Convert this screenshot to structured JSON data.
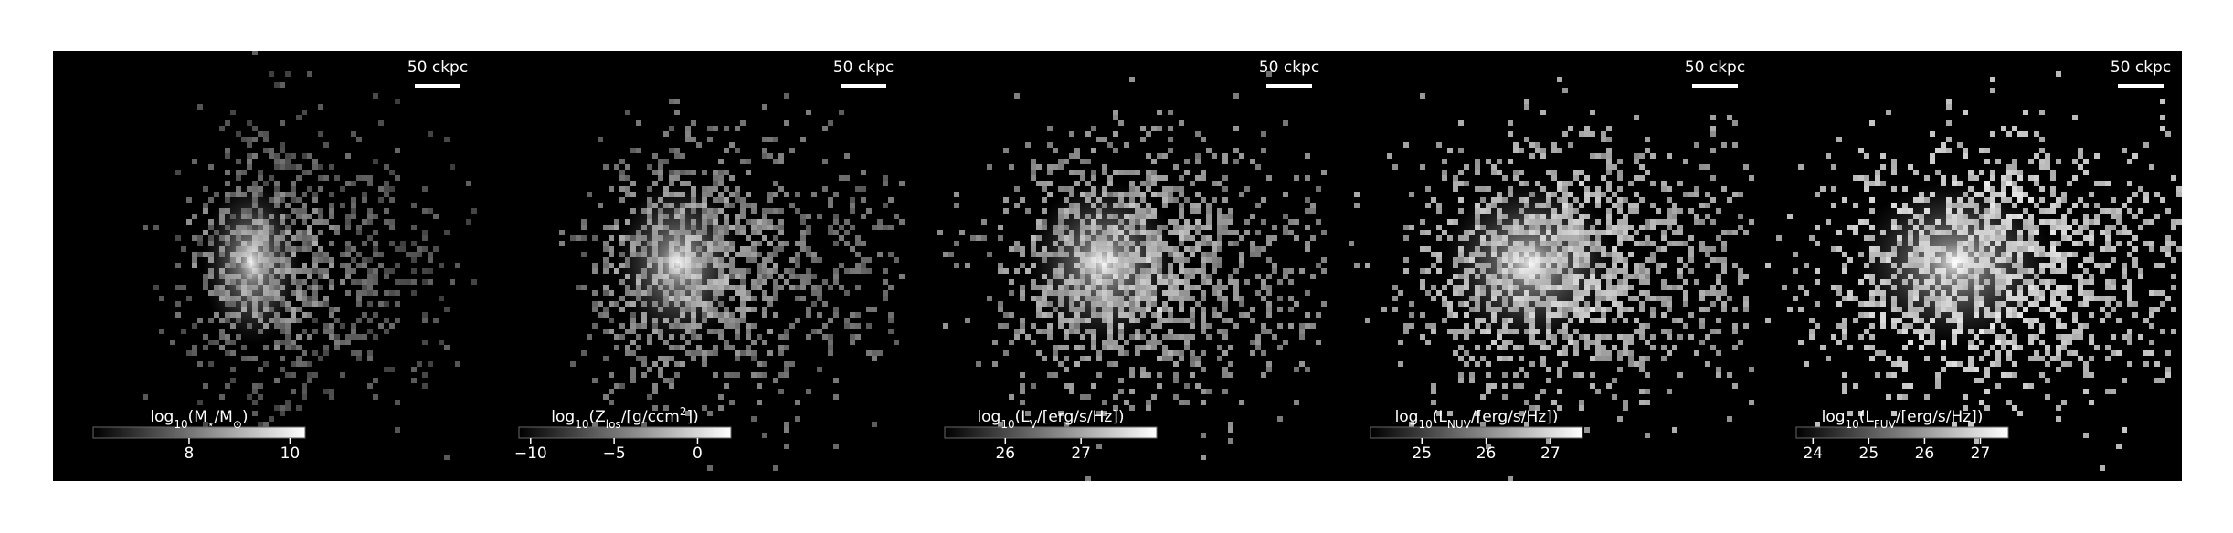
{
  "chart_data": [
    {
      "type": "image",
      "scalebar_label": "50 ckpc",
      "colorbar_label": [
        {
          "text": "log"
        },
        {
          "text": "10",
          "sub": true
        },
        {
          "text": "(M"
        },
        {
          "text": "⋆",
          "sub": true
        },
        {
          "text": "/M"
        },
        {
          "text": "⊙",
          "sub": true
        },
        {
          "text": ")"
        }
      ],
      "clim": [
        6.1,
        10.3
      ],
      "cticks": [
        8,
        10
      ]
    },
    {
      "type": "image",
      "scalebar_label": "50 ckpc",
      "colorbar_label": [
        {
          "text": "log"
        },
        {
          "text": "10",
          "sub": true
        },
        {
          "text": "(Z"
        },
        {
          "text": "los",
          "sub": true
        },
        {
          "text": "/[g/ccm"
        },
        {
          "text": "2",
          "sup": true
        },
        {
          "text": "])"
        }
      ],
      "clim": [
        -10.7,
        2.0
      ],
      "cticks": [
        {
          "value": -10,
          "label": "−10"
        },
        {
          "value": -5,
          "label": "−5"
        },
        0
      ]
    },
    {
      "type": "image",
      "scalebar_label": "50 ckpc",
      "colorbar_label": [
        {
          "text": "log"
        },
        {
          "text": "10",
          "sub": true
        },
        {
          "text": "(L"
        },
        {
          "text": "V",
          "sub": true
        },
        {
          "text": "/[erg/s/Hz])"
        }
      ],
      "clim": [
        25.2,
        28.0
      ],
      "cticks": [
        26,
        27
      ]
    },
    {
      "type": "image",
      "scalebar_label": "50 ckpc",
      "colorbar_label": [
        {
          "text": "log"
        },
        {
          "text": "10",
          "sub": true
        },
        {
          "text": "(L"
        },
        {
          "text": "NUV",
          "sub": true
        },
        {
          "text": "/[erg/s/Hz])"
        }
      ],
      "clim": [
        24.2,
        27.5
      ],
      "cticks": [
        25,
        26,
        27
      ]
    },
    {
      "type": "image",
      "scalebar_label": "50 ckpc",
      "colorbar_label": [
        {
          "text": "log"
        },
        {
          "text": "10",
          "sub": true
        },
        {
          "text": "(L"
        },
        {
          "text": "FUV",
          "sub": true
        },
        {
          "text": "/[erg/s/Hz])"
        }
      ],
      "clim": [
        23.7,
        27.5
      ],
      "cticks": [
        24,
        25,
        26,
        27
      ]
    }
  ]
}
